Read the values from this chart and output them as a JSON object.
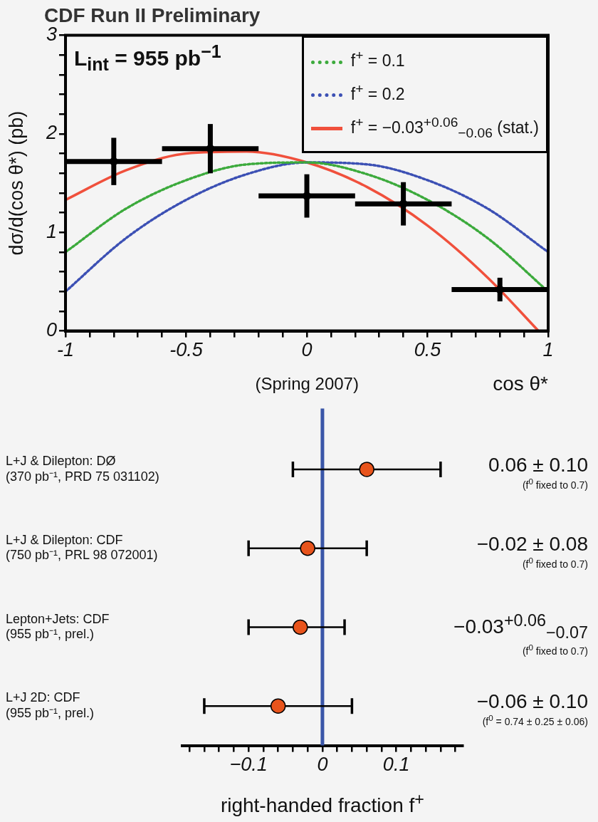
{
  "chart_data": [
    {
      "type": "scatter",
      "title": "CDF Run II Preliminary",
      "xlabel": "cos θ*",
      "ylabel": "dσ/d(cos θ*) (pb)",
      "annotations": [
        "L$_{int}$ = 955 pb$^{−1}$",
        "(Spring 2007)"
      ],
      "xlim": [
        -1,
        1
      ],
      "xticks": [
        -1,
        {
          "value": -0.9,
          "label": null
        },
        {
          "value": -0.8,
          "label": null
        },
        {
          "value": -0.7,
          "label": null
        },
        {
          "value": -0.6,
          "label": null
        },
        -0.5,
        {
          "value": -0.4,
          "label": null
        },
        {
          "value": -0.3,
          "label": null
        },
        {
          "value": -0.2,
          "label": null
        },
        {
          "value": -0.1,
          "label": null
        },
        0,
        {
          "value": 0.1,
          "label": null
        },
        {
          "value": 0.2,
          "label": null
        },
        {
          "value": 0.3,
          "label": null
        },
        {
          "value": 0.4,
          "label": null
        },
        0.5,
        {
          "value": 0.6,
          "label": null
        },
        {
          "value": 0.7,
          "label": null
        },
        {
          "value": 0.8,
          "label": null
        },
        {
          "value": 0.9,
          "label": null
        },
        1
      ],
      "ylim": [
        0,
        3
      ],
      "yticks": [
        0,
        {
          "value": 0.2,
          "label": null
        },
        {
          "value": 0.4,
          "label": null
        },
        {
          "value": 0.6,
          "label": null
        },
        {
          "value": 0.8,
          "label": null
        },
        1,
        {
          "value": 1.2,
          "label": null
        },
        {
          "value": 1.4,
          "label": null
        },
        {
          "value": 1.6,
          "label": null
        },
        {
          "value": 1.8,
          "label": null
        },
        2,
        {
          "value": 2.2,
          "label": null
        },
        {
          "value": 2.4,
          "label": null
        },
        {
          "value": 2.6,
          "label": null
        },
        {
          "value": 2.8,
          "label": null
        },
        3
      ],
      "grid": false,
      "legend": "top right",
      "marker": "circle",
      "series": [
        {
          "type": "line",
          "name": "f$^{+}$ = 0.1",
          "color": "#3caa3c",
          "line_style": "dotted",
          "marker": "none",
          "x": [
            -1,
            -0.75,
            -0.5,
            -0.25,
            0,
            0.25,
            0.5,
            0.75,
            1
          ],
          "values": [
            0.8,
            1.24,
            1.53,
            1.69,
            1.71,
            1.59,
            1.33,
            0.94,
            0.4
          ]
        },
        {
          "type": "line",
          "name": "f$^{+}$ = 0.2",
          "color": "#3c50b4",
          "line_style": "dotted",
          "marker": "none",
          "x": [
            -1,
            -0.75,
            -0.5,
            -0.25,
            0,
            0.25,
            0.5,
            0.75,
            1
          ],
          "values": [
            0.4,
            0.94,
            1.33,
            1.59,
            1.71,
            1.69,
            1.53,
            1.24,
            0.8
          ]
        },
        {
          "type": "line",
          "name": "f$^{+}$ = −0.03$^{+0.06}$$_{−0.06}$ (stat.)",
          "color": "#f0503c",
          "line_style": "solid",
          "marker": "none",
          "x": [
            -1,
            -0.75,
            -0.5,
            -0.25,
            0,
            0.25,
            0.5,
            0.75,
            0.96
          ],
          "values": [
            1.33,
            1.63,
            1.8,
            1.82,
            1.71,
            1.46,
            1.07,
            0.54,
            0
          ]
        },
        {
          "type": "scatter",
          "color": "#000000",
          "x": [
            -0.8,
            -0.4,
            0,
            0.4,
            0.8
          ],
          "values": [
            1.72,
            1.85,
            1.37,
            1.29,
            0.42
          ],
          "errors": [
            0.24,
            0.25,
            0.22,
            0.22,
            0.12
          ],
          "xerrors": [
            0.2,
            0.2,
            0.2,
            0.2,
            0.2
          ]
        }
      ]
    },
    {
      "type": "scatter",
      "orientation": "horizontal",
      "xlabel": "right-handed fraction f$^{+}$",
      "categories": [
        "L+J & Dilepton: DØ\n(370 pb⁻¹, PRD 75 031102)",
        "L+J & Dilepton: CDF\n(750 pb⁻¹, PRL 98 072001)",
        "Lepton+Jets: CDF\n(955 pb⁻¹, prel.)",
        "L+J 2D: CDF\n(955 pb⁻¹, prel.)"
      ],
      "xlim": [
        -0.19,
        0.19
      ],
      "xticks": [
        {
          "value": -0.18,
          "label": null
        },
        {
          "value": -0.16,
          "label": null
        },
        {
          "value": -0.14,
          "label": null
        },
        {
          "value": -0.12,
          "label": null
        },
        {
          "value": -0.1,
          "label": "−0.1"
        },
        {
          "value": -0.08,
          "label": null
        },
        {
          "value": -0.06,
          "label": null
        },
        {
          "value": -0.04,
          "label": null
        },
        {
          "value": -0.02,
          "label": null
        },
        0,
        {
          "value": 0.02,
          "label": null
        },
        {
          "value": 0.04,
          "label": null
        },
        {
          "value": 0.06,
          "label": null
        },
        {
          "value": 0.08,
          "label": null
        },
        0.1,
        {
          "value": 0.12,
          "label": null
        },
        {
          "value": 0.14,
          "label": null
        },
        {
          "value": 0.16,
          "label": null
        },
        {
          "value": 0.18,
          "label": null
        }
      ],
      "grid": false,
      "ref_lines": [
        {
          "axis": "x",
          "value": 0,
          "color": "#3a56a8"
        }
      ],
      "series": [
        {
          "color": "#e8541c",
          "marker": "circle",
          "values": [
            0.06,
            -0.02,
            -0.03,
            -0.06
          ],
          "errors": [
            0.1,
            0.08,
            [
              -0.1,
              0.03
            ],
            0.1
          ]
        }
      ],
      "annotations": [
        "0.06 ± 0.10",
        "(f$^{0}$ fixed to 0.7)",
        "−0.02 ± 0.08",
        "(f$^{0}$ fixed to 0.7)",
        "−0.03$^{+0.06}$$_{−0.07}$",
        "(f$^{0}$ fixed to 0.7)",
        "−0.06 ± 0.10",
        "(f$^{0}$ = 0.74 ± 0.25 ± 0.06)"
      ]
    }
  ]
}
